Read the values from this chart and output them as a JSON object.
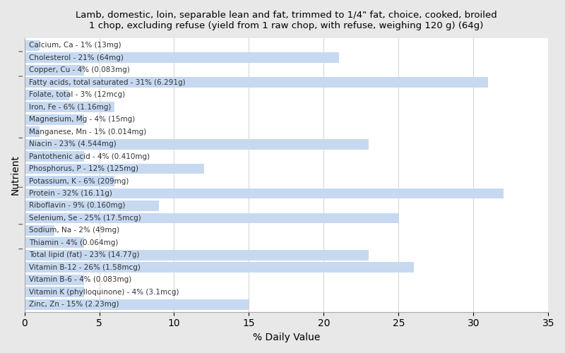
{
  "title": "Lamb, domestic, loin, separable lean and fat, trimmed to 1/4\" fat, choice, cooked, broiled\n1 chop, excluding refuse (yield from 1 raw chop, with refuse, weighing 120 g) (64g)",
  "xlabel": "% Daily Value",
  "ylabel": "Nutrient",
  "xlim": [
    0,
    35
  ],
  "bar_color": "#c6d9f1",
  "bg_color": "#e8e8e8",
  "plot_bg_color": "#ffffff",
  "label_color": "#333333",
  "label_fontsize": 7.5,
  "title_fontsize": 9.5,
  "nutrients": [
    {
      "label": "Calcium, Ca - 1% (13mg)",
      "value": 1
    },
    {
      "label": "Cholesterol - 21% (64mg)",
      "value": 21
    },
    {
      "label": "Copper, Cu - 4% (0.083mg)",
      "value": 4
    },
    {
      "label": "Fatty acids, total saturated - 31% (6.291g)",
      "value": 31
    },
    {
      "label": "Folate, total - 3% (12mcg)",
      "value": 3
    },
    {
      "label": "Iron, Fe - 6% (1.16mg)",
      "value": 6
    },
    {
      "label": "Magnesium, Mg - 4% (15mg)",
      "value": 4
    },
    {
      "label": "Manganese, Mn - 1% (0.014mg)",
      "value": 1
    },
    {
      "label": "Niacin - 23% (4.544mg)",
      "value": 23
    },
    {
      "label": "Pantothenic acid - 4% (0.410mg)",
      "value": 4
    },
    {
      "label": "Phosphorus, P - 12% (125mg)",
      "value": 12
    },
    {
      "label": "Potassium, K - 6% (209mg)",
      "value": 6
    },
    {
      "label": "Protein - 32% (16.11g)",
      "value": 32
    },
    {
      "label": "Riboflavin - 9% (0.160mg)",
      "value": 9
    },
    {
      "label": "Selenium, Se - 25% (17.5mcg)",
      "value": 25
    },
    {
      "label": "Sodium, Na - 2% (49mg)",
      "value": 2
    },
    {
      "label": "Thiamin - 4% (0.064mg)",
      "value": 4
    },
    {
      "label": "Total lipid (fat) - 23% (14.77g)",
      "value": 23
    },
    {
      "label": "Vitamin B-12 - 26% (1.58mcg)",
      "value": 26
    },
    {
      "label": "Vitamin B-6 - 4% (0.083mg)",
      "value": 4
    },
    {
      "label": "Vitamin K (phylloquinone) - 4% (3.1mcg)",
      "value": 4
    },
    {
      "label": "Zinc, Zn - 15% (2.23mg)",
      "value": 15
    }
  ],
  "xticks": [
    0,
    5,
    10,
    15,
    20,
    25,
    30,
    35
  ]
}
